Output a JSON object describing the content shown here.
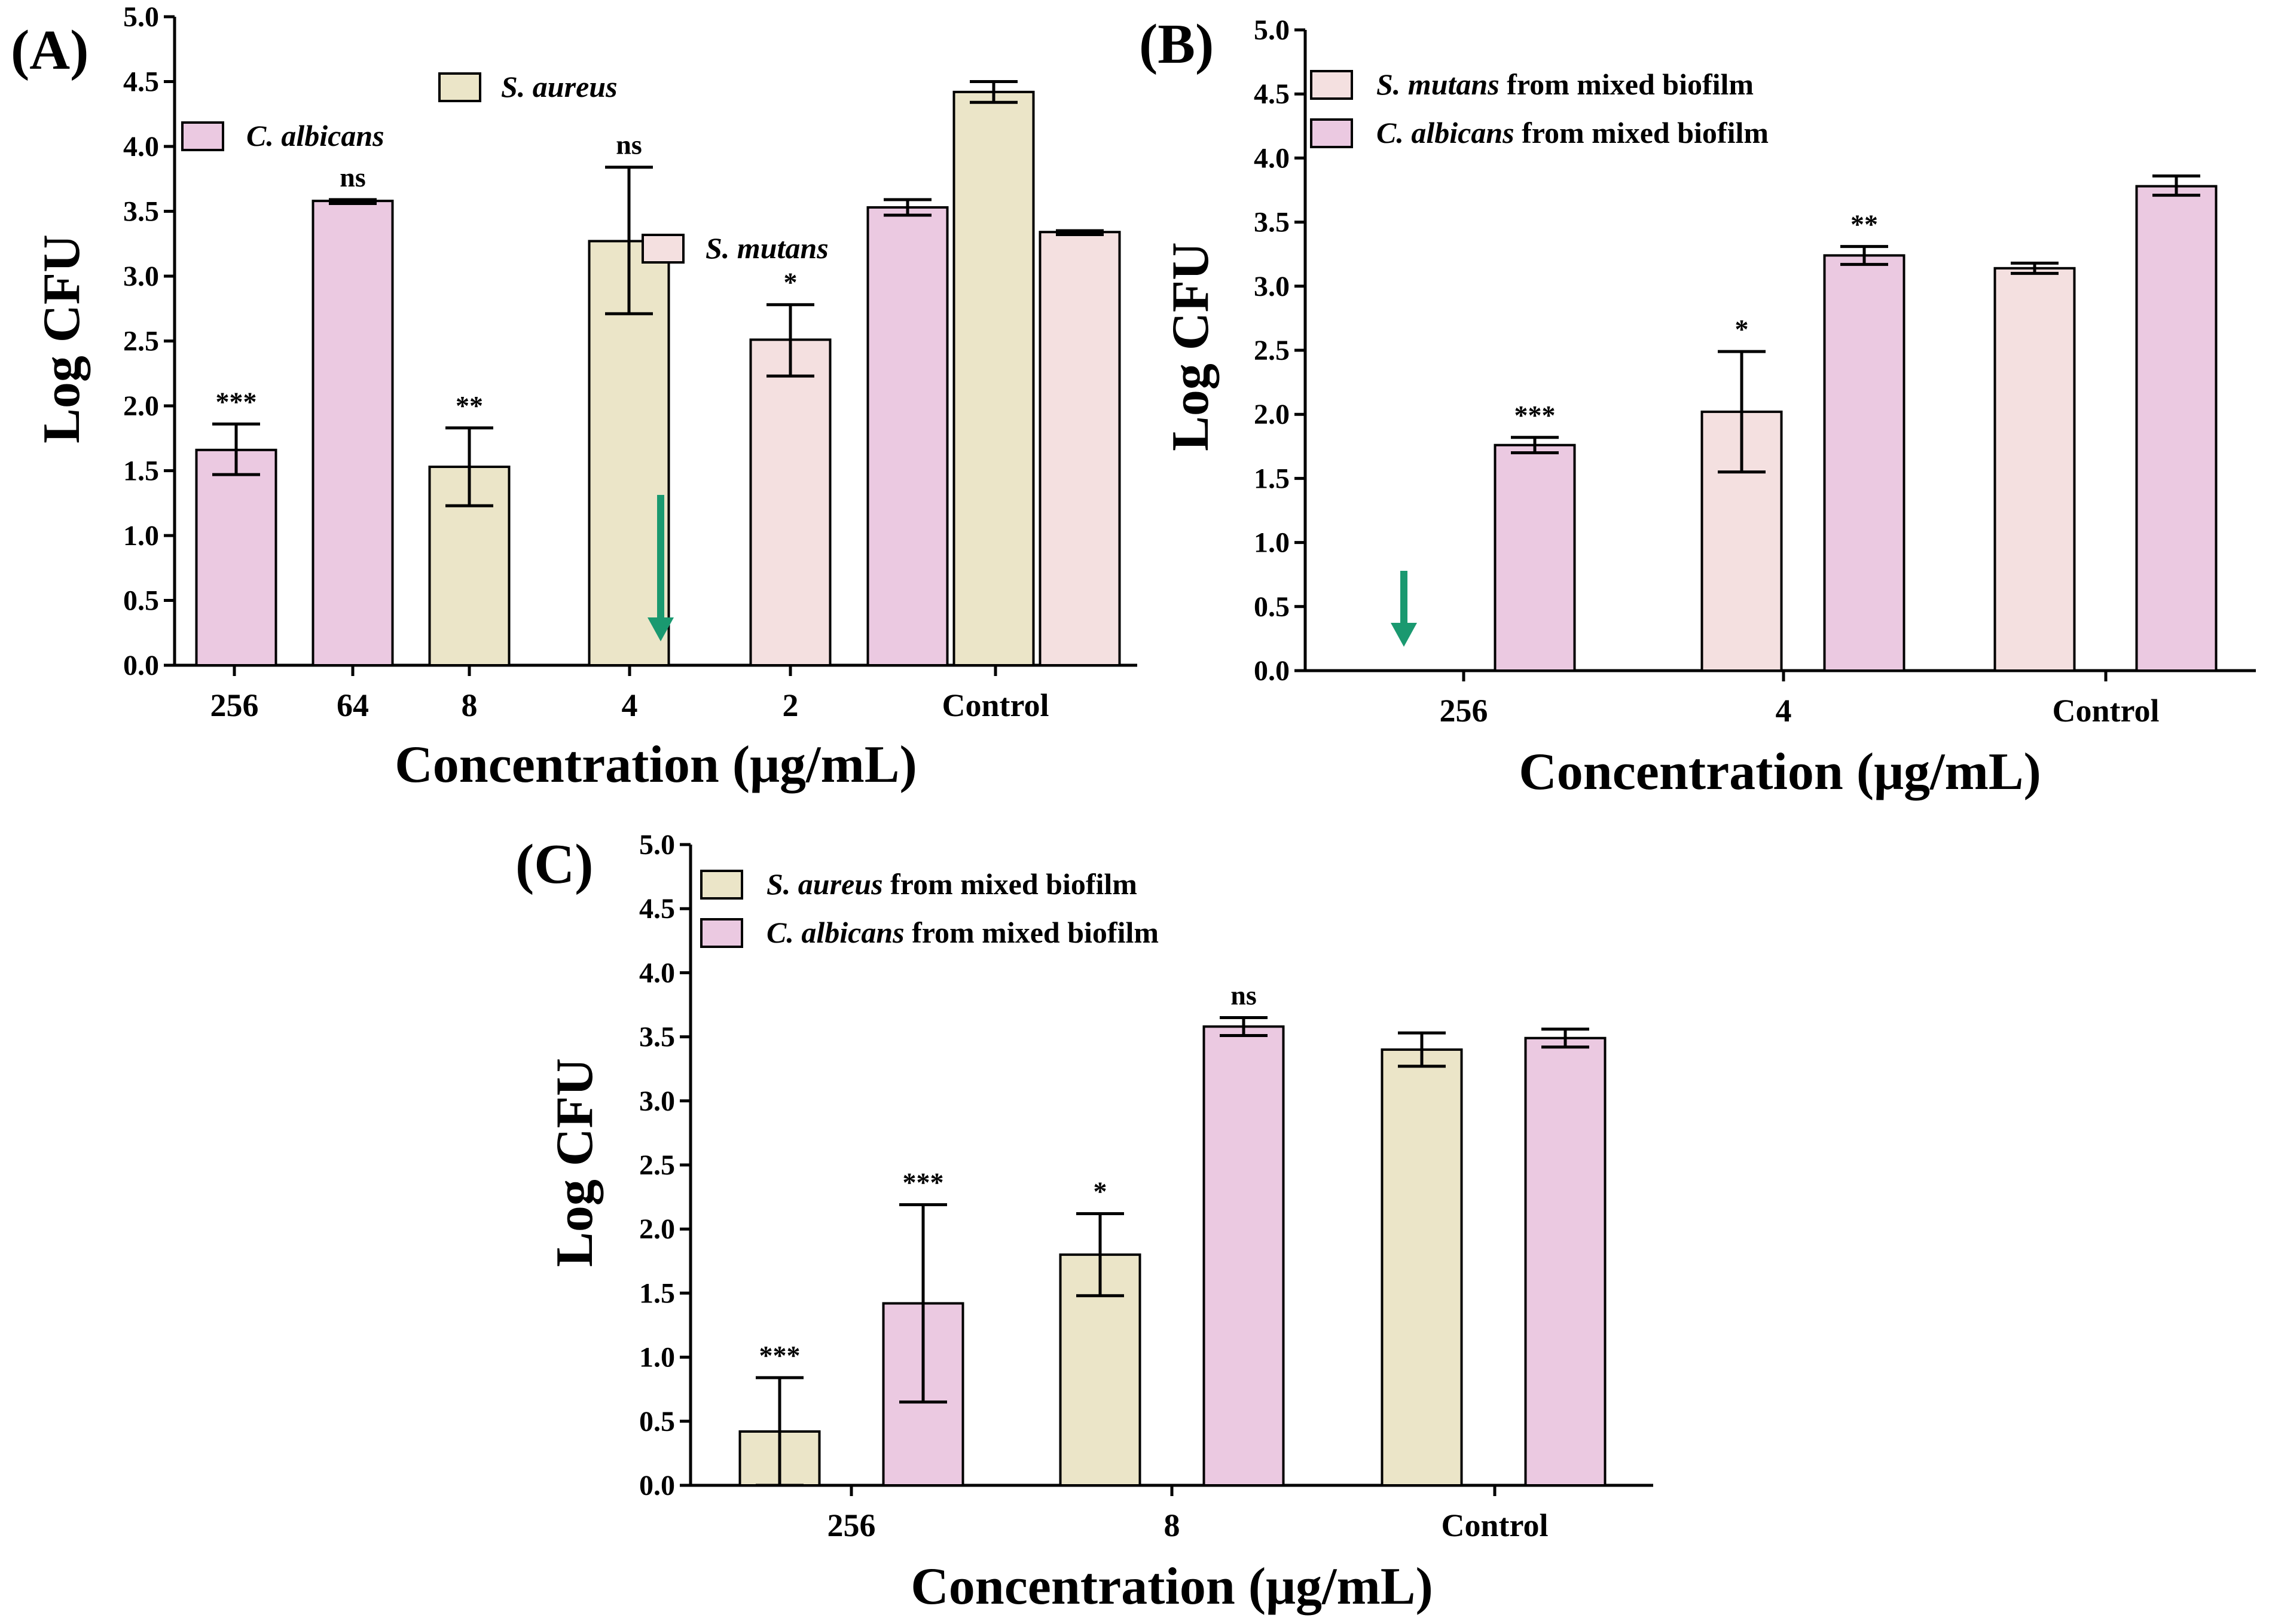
{
  "colors": {
    "C_albicans": "#ebc9e1",
    "S_aureus": "#ebe5c8",
    "S_mutans": "#f4e0e0",
    "arrow": "#1a9970"
  },
  "chart_data": [
    {
      "id": "A",
      "type": "bar",
      "panel_label": "(A)",
      "xlabel": "Concentration (μg/mL)",
      "ylabel": "Log CFU",
      "ylim": [
        0,
        5
      ],
      "ytick_step": 0.5,
      "yticks": [
        "0.0",
        "0.5",
        "1.0",
        "1.5",
        "2.0",
        "2.5",
        "3.0",
        "3.5",
        "4.0",
        "4.5",
        "5.0"
      ],
      "categories": [
        "256",
        "64",
        "8",
        "4",
        "2",
        "Control"
      ],
      "legend": [
        {
          "italic": "S. aureus",
          "rest": "",
          "color_key": "S_aureus"
        },
        {
          "italic": "C. albicans",
          "rest": "",
          "color_key": "C_albicans"
        },
        {
          "italic": "S. mutans",
          "rest": "",
          "color_key": "S_mutans"
        }
      ],
      "bars": [
        {
          "category": "256",
          "series": "C. albicans",
          "color_key": "C_albicans",
          "value": 1.66,
          "err_low": 1.47,
          "err_high": 1.86,
          "sig": "***"
        },
        {
          "category": "64",
          "series": "C. albicans",
          "color_key": "C_albicans",
          "value": 3.58,
          "err_low": 3.56,
          "err_high": 3.59,
          "sig": "ns"
        },
        {
          "category": "8",
          "series": "S. aureus",
          "color_key": "S_aureus",
          "value": 1.53,
          "err_low": 1.23,
          "err_high": 1.83,
          "sig": "**"
        },
        {
          "category": "4",
          "series": "S. aureus",
          "color_key": "S_aureus",
          "value": 3.27,
          "err_low": 2.71,
          "err_high": 3.84,
          "sig": "ns"
        },
        {
          "category": "2",
          "series": "S. mutans",
          "color_key": "S_mutans",
          "value": 2.51,
          "err_low": 2.23,
          "err_high": 2.78,
          "sig": "*"
        },
        {
          "category": "Control",
          "series": "C. albicans",
          "color_key": "C_albicans",
          "value": 3.53,
          "err_low": 3.47,
          "err_high": 3.59,
          "sig": ""
        },
        {
          "category": "Control",
          "series": "S. aureus",
          "color_key": "S_aureus",
          "value": 4.42,
          "err_low": 4.34,
          "err_high": 4.5,
          "sig": ""
        },
        {
          "category": "Control",
          "series": "S. mutans",
          "color_key": "S_mutans",
          "value": 3.34,
          "err_low": 3.32,
          "err_high": 3.35,
          "sig": ""
        }
      ],
      "arrow_at_category": "4"
    },
    {
      "id": "B",
      "type": "bar",
      "panel_label": "(B)",
      "xlabel": "Concentration (μg/mL)",
      "ylabel": "Log CFU",
      "ylim": [
        0,
        5
      ],
      "ytick_step": 0.5,
      "yticks": [
        "0.0",
        "0.5",
        "1.0",
        "1.5",
        "2.0",
        "2.5",
        "3.0",
        "3.5",
        "4.0",
        "4.5",
        "5.0"
      ],
      "categories": [
        "256",
        "4",
        "Control"
      ],
      "legend": [
        {
          "italic": "S. mutans",
          "rest": " from mixed biofilm",
          "color_key": "S_mutans"
        },
        {
          "italic": "C. albicans",
          "rest": " from mixed biofilm",
          "color_key": "C_albicans"
        }
      ],
      "bars": [
        {
          "category": "256",
          "series": "S. mutans from mixed biofilm",
          "color_key": "S_mutans",
          "value": 0,
          "err_low": 0,
          "err_high": 0,
          "sig": ""
        },
        {
          "category": "256",
          "series": "C. albicans from mixed biofilm",
          "color_key": "C_albicans",
          "value": 1.76,
          "err_low": 1.7,
          "err_high": 1.82,
          "sig": "***"
        },
        {
          "category": "4",
          "series": "S. mutans from mixed biofilm",
          "color_key": "S_mutans",
          "value": 2.02,
          "err_low": 1.55,
          "err_high": 2.49,
          "sig": "*"
        },
        {
          "category": "4",
          "series": "C. albicans from mixed biofilm",
          "color_key": "C_albicans",
          "value": 3.24,
          "err_low": 3.17,
          "err_high": 3.31,
          "sig": "**"
        },
        {
          "category": "Control",
          "series": "S. mutans from mixed biofilm",
          "color_key": "S_mutans",
          "value": 3.14,
          "err_low": 3.1,
          "err_high": 3.18,
          "sig": ""
        },
        {
          "category": "Control",
          "series": "C. albicans from mixed biofilm",
          "color_key": "C_albicans",
          "value": 3.78,
          "err_low": 3.71,
          "err_high": 3.86,
          "sig": ""
        }
      ],
      "arrow_at_category": "256"
    },
    {
      "id": "C",
      "type": "bar",
      "panel_label": "(C)",
      "xlabel": "Concentration (μg/mL)",
      "ylabel": "Log CFU",
      "ylim": [
        0,
        5
      ],
      "ytick_step": 0.5,
      "yticks": [
        "0.0",
        "0.5",
        "1.0",
        "1.5",
        "2.0",
        "2.5",
        "3.0",
        "3.5",
        "4.0",
        "4.5",
        "5.0"
      ],
      "categories": [
        "256",
        "8",
        "Control"
      ],
      "legend": [
        {
          "italic": "S. aureus",
          "rest": " from mixed biofilm",
          "color_key": "S_aureus"
        },
        {
          "italic": "C. albicans",
          "rest": " from mixed biofilm",
          "color_key": "C_albicans"
        }
      ],
      "bars": [
        {
          "category": "256",
          "series": "S. aureus from mixed biofilm",
          "color_key": "S_aureus",
          "value": 0.42,
          "err_low": 0.0,
          "err_high": 0.84,
          "sig": "***"
        },
        {
          "category": "256",
          "series": "C. albicans from mixed biofilm",
          "color_key": "C_albicans",
          "value": 1.42,
          "err_low": 0.65,
          "err_high": 2.19,
          "sig": "***"
        },
        {
          "category": "8",
          "series": "S. aureus from mixed biofilm",
          "color_key": "S_aureus",
          "value": 1.8,
          "err_low": 1.48,
          "err_high": 2.12,
          "sig": "*"
        },
        {
          "category": "8",
          "series": "C. albicans from mixed biofilm",
          "color_key": "C_albicans",
          "value": 3.58,
          "err_low": 3.51,
          "err_high": 3.65,
          "sig": "ns"
        },
        {
          "category": "Control",
          "series": "S. aureus from mixed biofilm",
          "color_key": "S_aureus",
          "value": 3.4,
          "err_low": 3.27,
          "err_high": 3.53,
          "sig": ""
        },
        {
          "category": "Control",
          "series": "C. albicans from mixed biofilm",
          "color_key": "C_albicans",
          "value": 3.49,
          "err_low": 3.42,
          "err_high": 3.56,
          "sig": ""
        }
      ],
      "arrow_at_category": ""
    }
  ]
}
